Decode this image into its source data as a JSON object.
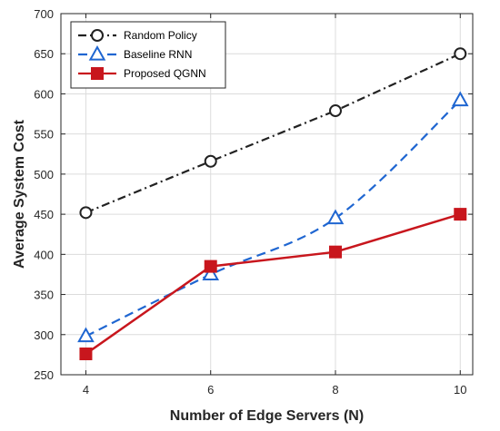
{
  "chart_data": {
    "type": "line",
    "title": "",
    "xlabel": "Number of Edge Servers (N)",
    "ylabel": "Average System Cost",
    "x": [
      4,
      6,
      8,
      10
    ],
    "xlim": [
      3.6,
      10.2
    ],
    "ylim": [
      250,
      700
    ],
    "xticks": [
      4,
      6,
      8,
      10
    ],
    "yticks": [
      250,
      300,
      350,
      400,
      450,
      500,
      550,
      600,
      650,
      700
    ],
    "grid": true,
    "legend_position": "top-left",
    "series": [
      {
        "name": "Random Policy",
        "values": [
          452,
          516,
          579,
          650
        ],
        "color": "#222222",
        "line_style": "dash-dot",
        "marker": "circle-open",
        "smooth": false
      },
      {
        "name": "Baseline RNN",
        "values": [
          298,
          375,
          445,
          592
        ],
        "color": "#1f66d1",
        "line_style": "dashed",
        "marker": "triangle-open",
        "smooth": true
      },
      {
        "name": "Proposed QGNN",
        "values": [
          276,
          385,
          403,
          450
        ],
        "color": "#c8161d",
        "line_style": "solid",
        "marker": "square-filled",
        "smooth": false
      }
    ]
  }
}
